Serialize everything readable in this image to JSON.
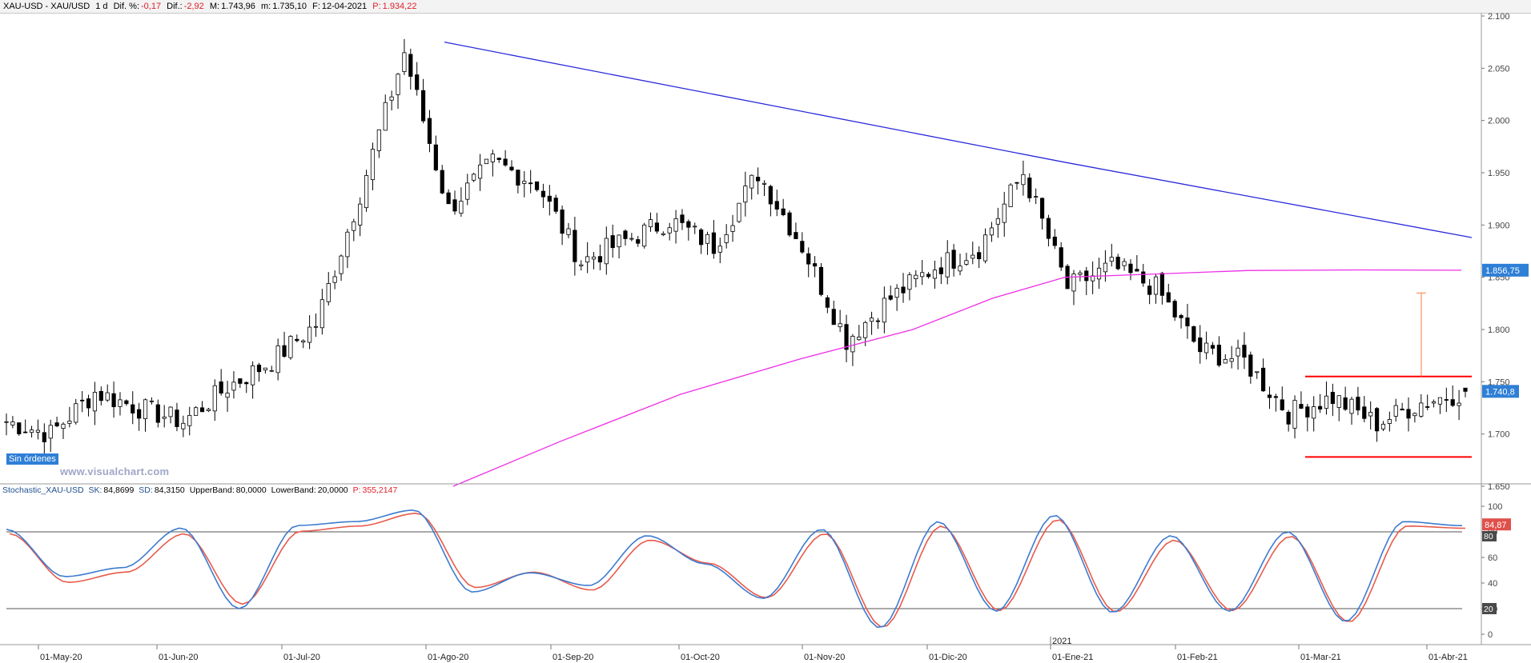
{
  "header": {
    "symbol": "XAU-USD - XAU/USD",
    "period": "1 d",
    "dif_pct_label": "Dif. %:",
    "dif_pct_value": "-0,17",
    "dif_label": "Dif.:",
    "dif_value": "-2,92",
    "max_label": "M:",
    "max_value": "1.743,96",
    "min_label": "m:",
    "min_value": "1.735,10",
    "date_label": "F:",
    "date_value": "12-04-2021",
    "p_label": "P:",
    "p_value": "1.934,22"
  },
  "price_axis": {
    "labels": [
      "2.100",
      "2.050",
      "2.000",
      "1.950",
      "1.900",
      "1.850",
      "1.800",
      "1.750",
      "1.700",
      "1.650"
    ],
    "last_price_tag": "1.740,8",
    "ma_tag": "1.856,75"
  },
  "orders_tag": "Sin órdenes",
  "watermark": "www.visualchart.com",
  "indicator": {
    "name": "Stochastic_XAU-USD",
    "sk_label": "SK:",
    "sk_value": "84,8699",
    "sd_label": "SD:",
    "sd_value": "84,3150",
    "upper_label": "UpperBand:",
    "upper_value": "80,0000",
    "lower_label": "LowerBand:",
    "lower_value": "20,0000",
    "p_label": "P:",
    "p_value": "355,2147",
    "axis_labels": [
      "100",
      "80",
      "60",
      "40",
      "20",
      "0"
    ],
    "value_tag": "84,87",
    "band_tag_80": "80",
    "band_tag_20": "20"
  },
  "time_axis": {
    "labels": [
      "01-May-20",
      "01-Jun-20",
      "01-Jul-20",
      "01-Ago-20",
      "01-Sep-20",
      "01-Oct-20",
      "01-Nov-20",
      "01-Dic-20",
      "01-Ene-21",
      "01-Feb-21",
      "01-Mar-21",
      "01-Abr-21"
    ],
    "year_label": "2021"
  },
  "colors": {
    "up_candle": "#ffffff",
    "down_candle": "#000000",
    "trendline": "#2a2adc",
    "moving_average": "#ee2ee6",
    "range_lines": "#ff0000",
    "target_arrow": "#ff7a3c",
    "sk_line": "#3d7bd0",
    "sd_line": "#e85a4a",
    "price_tag_bg": "#2e7fd6",
    "value_tag_bg": "#e0504a"
  },
  "chart_data": [
    {
      "type": "candlestick",
      "title": "XAU-USD - XAU/USD",
      "xlabel": "",
      "ylabel": "",
      "ylim": [
        1650,
        2100
      ],
      "x_ticks": [
        "01-May-20",
        "01-Jun-20",
        "01-Jul-20",
        "01-Ago-20",
        "01-Sep-20",
        "01-Oct-20",
        "01-Nov-20",
        "01-Dic-20",
        "01-Ene-21",
        "01-Feb-21",
        "01-Mar-21",
        "01-Abr-21"
      ],
      "close_anchors": [
        {
          "x": "late Apr-20",
          "close": 1712
        },
        {
          "x": "01-May-20",
          "close": 1700
        },
        {
          "x": "mid May-20",
          "close": 1740
        },
        {
          "x": "01-Jun-20",
          "close": 1725
        },
        {
          "x": "mid Jun-20",
          "close": 1712
        },
        {
          "x": "late Jun-20",
          "close": 1745
        },
        {
          "x": "01-Jul-20",
          "close": 1770
        },
        {
          "x": "mid Jul-20",
          "close": 1805
        },
        {
          "x": "late Jul-20",
          "close": 1930
        },
        {
          "x": "early Ago-20",
          "close": 2065
        },
        {
          "x": "mid Ago-20",
          "close": 1915
        },
        {
          "x": "late Ago-20",
          "close": 1960
        },
        {
          "x": "01-Sep-20",
          "close": 1940
        },
        {
          "x": "late Sep-20",
          "close": 1865
        },
        {
          "x": "01-Oct-20",
          "close": 1885
        },
        {
          "x": "mid Oct-20",
          "close": 1905
        },
        {
          "x": "late Oct-20",
          "close": 1880
        },
        {
          "x": "early Nov-20",
          "close": 1950
        },
        {
          "x": "mid Nov-20",
          "close": 1880
        },
        {
          "x": "late Nov-20",
          "close": 1790
        },
        {
          "x": "01-Dic-20",
          "close": 1830
        },
        {
          "x": "mid Dic-20",
          "close": 1860
        },
        {
          "x": "late Dic-20",
          "close": 1878
        },
        {
          "x": "early Ene-21",
          "close": 1950
        },
        {
          "x": "mid Ene-21",
          "close": 1840
        },
        {
          "x": "late Ene-21",
          "close": 1860
        },
        {
          "x": "01-Feb-21",
          "close": 1840
        },
        {
          "x": "mid Feb-21",
          "close": 1780
        },
        {
          "x": "late Feb-21",
          "close": 1770
        },
        {
          "x": "01-Mar-21",
          "close": 1720
        },
        {
          "x": "mid Mar-21",
          "close": 1735
        },
        {
          "x": "late Mar-21",
          "close": 1710
        },
        {
          "x": "01-Abr-21",
          "close": 1730
        },
        {
          "x": "12-04-2021",
          "open": 1743.96,
          "high": 1743.96,
          "low": 1735.1,
          "close": 1740.8
        }
      ],
      "trendline": [
        {
          "x": "early Ago-20",
          "y": 2075
        },
        {
          "x": "early Ene-21",
          "y": 1960
        },
        {
          "x": "mid Abr-21",
          "y": 1888
        }
      ],
      "moving_average_last": 1856.75,
      "range_high": 1755,
      "range_low": 1678,
      "target": 1835
    },
    {
      "type": "line",
      "title": "Stochastic_XAU-USD",
      "ylim": [
        0,
        100
      ],
      "bands": [
        80,
        20
      ],
      "series": [
        {
          "name": "SK",
          "last": 84.8699,
          "anchors": [
            82,
            45,
            52,
            83,
            20,
            85,
            88,
            97,
            33,
            48,
            38,
            77,
            55,
            28,
            82,
            5,
            88,
            18,
            93,
            17,
            77,
            18,
            80,
            10,
            88,
            84.87
          ]
        },
        {
          "name": "SD",
          "last": 84.315,
          "anchors": [
            80,
            42,
            50,
            80,
            25,
            82,
            86,
            96,
            38,
            50,
            36,
            75,
            57,
            30,
            80,
            7,
            86,
            20,
            91,
            19,
            75,
            20,
            78,
            11,
            86,
            84.32
          ]
        }
      ]
    }
  ]
}
